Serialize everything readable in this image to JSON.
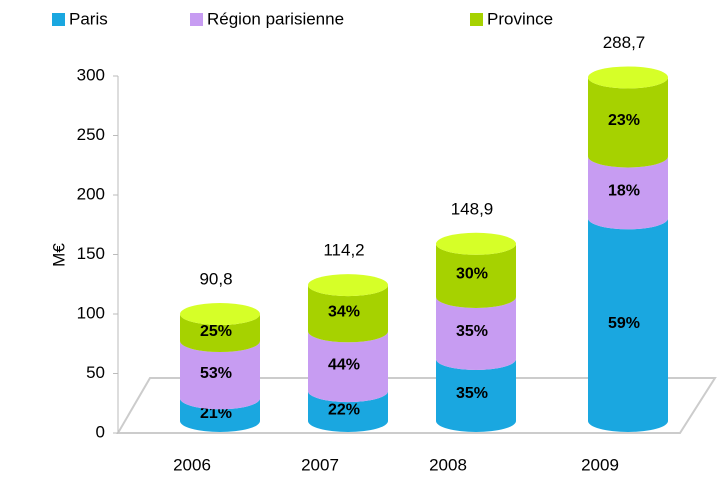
{
  "chart_data": {
    "type": "bar",
    "stacked": true,
    "ylabel": "M€",
    "categories": [
      "2006",
      "2007",
      "2008",
      "2009"
    ],
    "series": [
      {
        "name": "Paris",
        "color": "#1aa7e0",
        "values": [
          21,
          22,
          35,
          59
        ],
        "value_labels": [
          "21%",
          "22%",
          "35%",
          "59%"
        ]
      },
      {
        "name": "Région parisienne",
        "color": "#c79cf2",
        "values": [
          53,
          44,
          35,
          18
        ],
        "value_labels": [
          "53%",
          "44%",
          "35%",
          "18%"
        ]
      },
      {
        "name": "Province",
        "color": "#a6d200",
        "values": [
          25,
          34,
          30,
          23
        ],
        "value_labels": [
          "25%",
          "34%",
          "30%",
          "23%"
        ]
      }
    ],
    "totals": {
      "values": [
        90.8,
        114.2,
        148.9,
        288.7
      ],
      "value_labels": [
        "90,8",
        "114,2",
        "148,9",
        "288,7"
      ]
    },
    "ylim": [
      0,
      300
    ],
    "yticks": [
      0,
      50,
      100,
      150,
      200,
      250,
      300
    ],
    "legend": "top"
  }
}
